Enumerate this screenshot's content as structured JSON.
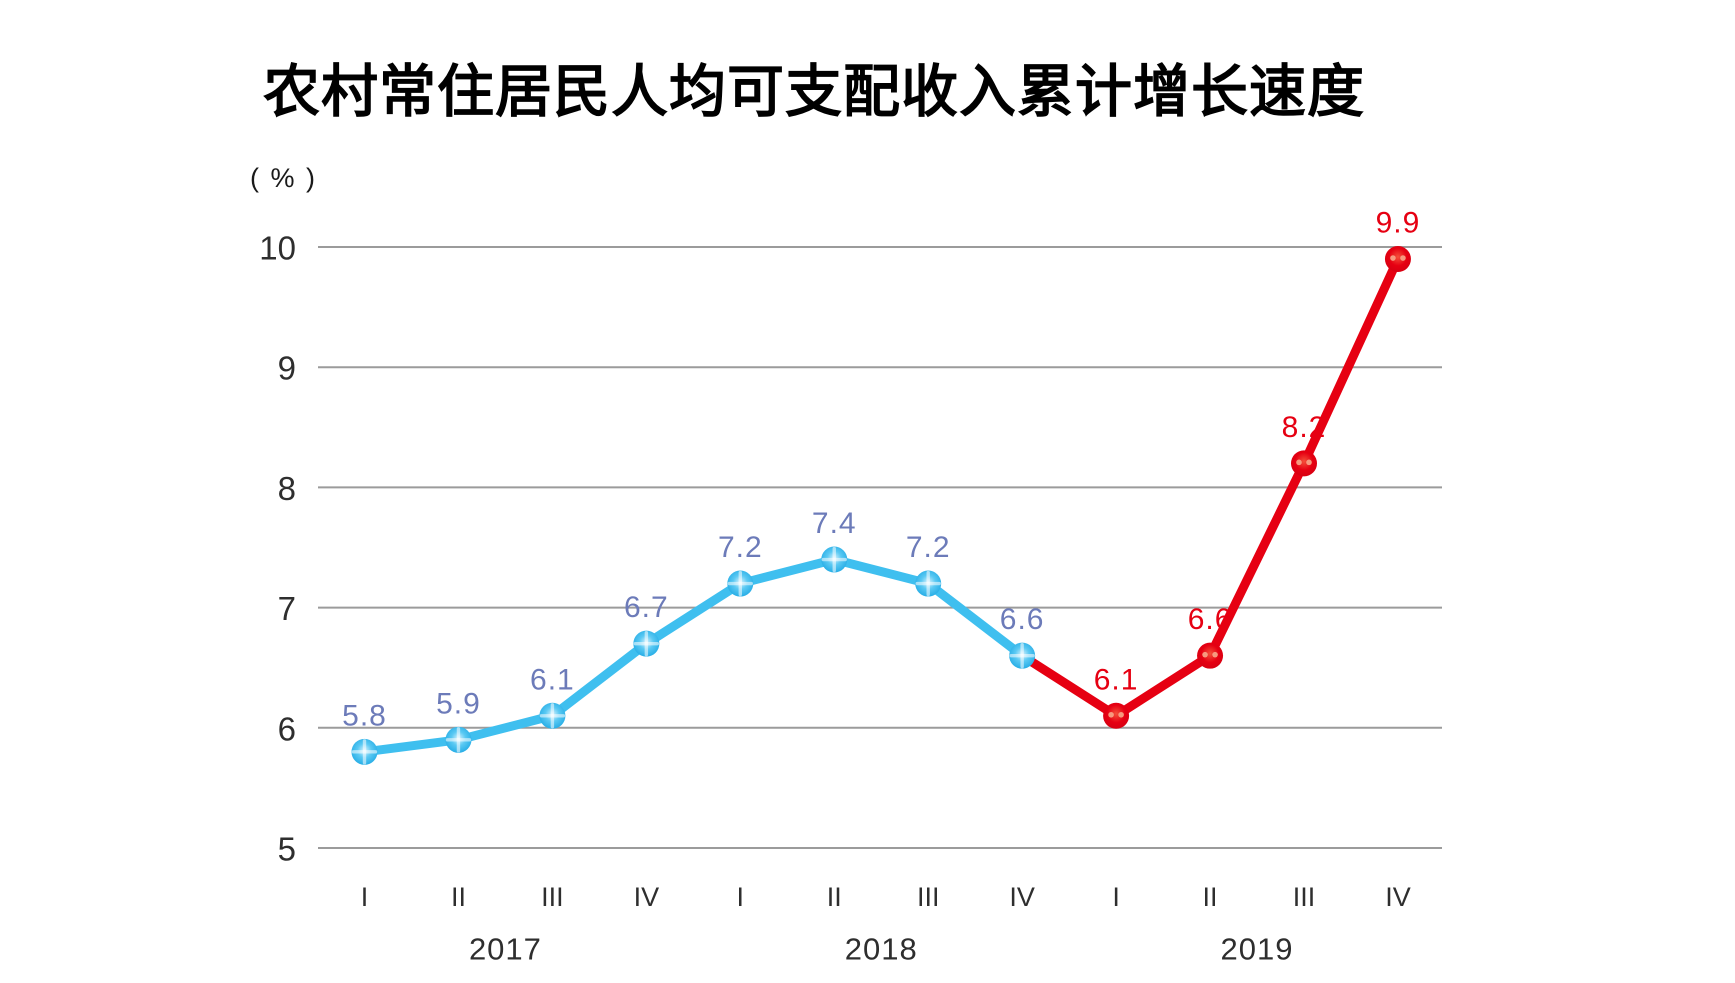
{
  "title": "农村常住居民人均可支配收入累计增长速度",
  "unit_label": "( % )",
  "palette": {
    "blue_line": "#3FBFEF",
    "blue_ball_center": "#d8f2fd",
    "blue_ball_mid": "#5ac9f3",
    "blue_ball_edge": "#1fa9e4",
    "blue_label": "#6C7BB9",
    "red_line": "#E60012",
    "red_ball_center": "#f4503a",
    "red_ball_edge": "#d50011",
    "red_glint": "#f7a084",
    "red_label": "#E60012",
    "grid": "#9b9b9b",
    "axis_text": "#2e2e2e"
  },
  "chart_data": {
    "type": "line",
    "title": "农村常住居民人均可支配收入累计增长速度",
    "ylabel": "( % )",
    "ylim": [
      5,
      10.5
    ],
    "y_ticks": [
      5,
      6,
      7,
      8,
      9,
      10
    ],
    "grid": "horizontal",
    "legend": "none",
    "x_labels": [
      "I",
      "II",
      "III",
      "IV",
      "I",
      "II",
      "III",
      "IV",
      "I",
      "II",
      "III",
      "IV"
    ],
    "year_groups": [
      {
        "label": "2017",
        "start": 0,
        "end": 3
      },
      {
        "label": "2018",
        "start": 4,
        "end": 7
      },
      {
        "label": "2019",
        "start": 8,
        "end": 11
      }
    ],
    "series_note": "single line; 2017-2018 points drawn blue, 2019 points drawn red; connecting segment 2018-IV to 2019-I is red",
    "points": [
      {
        "quarter": "I",
        "year": "2017",
        "value": 5.8,
        "label": "5.8",
        "color": "blue"
      },
      {
        "quarter": "II",
        "year": "2017",
        "value": 5.9,
        "label": "5.9",
        "color": "blue"
      },
      {
        "quarter": "III",
        "year": "2017",
        "value": 6.1,
        "label": "6.1",
        "color": "blue"
      },
      {
        "quarter": "IV",
        "year": "2017",
        "value": 6.7,
        "label": "6.7",
        "color": "blue"
      },
      {
        "quarter": "I",
        "year": "2018",
        "value": 7.2,
        "label": "7.2",
        "color": "blue"
      },
      {
        "quarter": "II",
        "year": "2018",
        "value": 7.4,
        "label": "7.4",
        "color": "blue"
      },
      {
        "quarter": "III",
        "year": "2018",
        "value": 7.2,
        "label": "7.2",
        "color": "blue"
      },
      {
        "quarter": "IV",
        "year": "2018",
        "value": 6.6,
        "label": "6.6",
        "color": "blue"
      },
      {
        "quarter": "I",
        "year": "2019",
        "value": 6.1,
        "label": "6.1",
        "color": "red"
      },
      {
        "quarter": "II",
        "year": "2019",
        "value": 6.6,
        "label": "6.6",
        "color": "red"
      },
      {
        "quarter": "III",
        "year": "2019",
        "value": 8.2,
        "label": "8.2",
        "color": "red"
      },
      {
        "quarter": "IV",
        "year": "2019",
        "value": 9.9,
        "label": "9.9",
        "color": "red"
      }
    ]
  }
}
